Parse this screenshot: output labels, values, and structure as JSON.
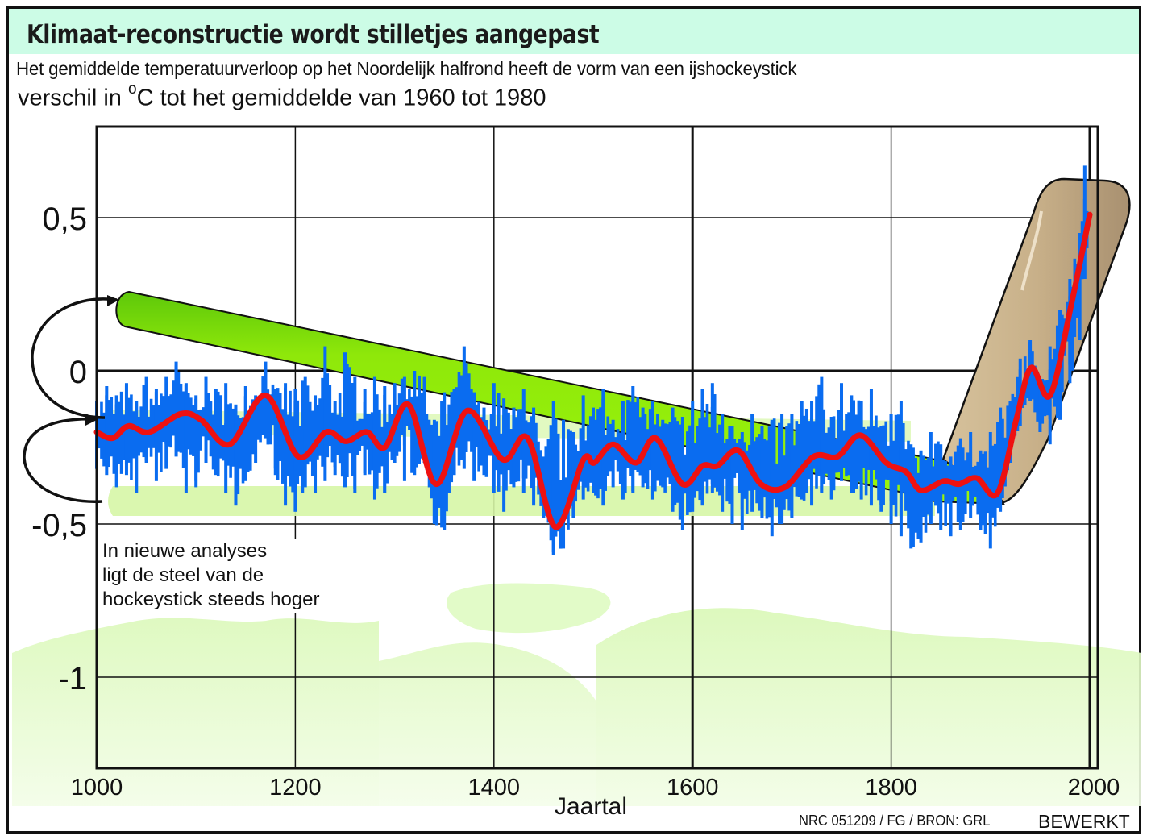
{
  "header": {
    "title": "Klimaat-reconstructie wordt stilletjes aangepast",
    "subtitle": "Het gemiddelde temperatuurverloop op het Noordelijk halfrond heeft de vorm van een ijshockeystick",
    "unit_prefix": "verschil in ",
    "unit_degree": "o",
    "unit_suffix": "C tot het gemiddelde van 1960 tot 1980"
  },
  "annotation": {
    "lines": [
      "In nieuwe analyses",
      "ligt de steel van de",
      "hockeystick steeds hoger"
    ]
  },
  "footer": {
    "credit": "NRC 051209 / FG / BRON: GRL",
    "edited": "BEWERKT"
  },
  "colors": {
    "title_bar": "#ccfce6",
    "raw_series": "#0a6cf0",
    "smoothed_series": "#ee1111",
    "old_stick_shaft": "#99f00a",
    "new_stick_shaft_shadow": "#d4f7a4",
    "stick_blade": "#c9b18a",
    "map_background": "#e2fbc8"
  },
  "chart_data": {
    "type": "line",
    "title": "Klimaat-reconstructie wordt stilletjes aangepast",
    "subtitle": "Het gemiddelde temperatuurverloop op het Noordelijk halfrond heeft de vorm van een ijshockeystick",
    "xlabel": "Jaartal",
    "ylabel": "verschil in °C tot het gemiddelde van 1960 tot 1980",
    "xlim": [
      1000,
      2004
    ],
    "ylim": [
      -1.3,
      0.8
    ],
    "grid": true,
    "x_ticks": [
      1000,
      1200,
      1400,
      1600,
      1800,
      2000
    ],
    "x_tick_labels": [
      "1000",
      "1200",
      "1400",
      "1600",
      "1800",
      "2000"
    ],
    "y_ticks": [
      0.5,
      0,
      -0.5,
      -1
    ],
    "y_tick_labels": [
      "0,5",
      "0",
      "-0,5",
      "-1"
    ],
    "series": [
      {
        "name": "smoothed reconstruction",
        "style": "thick red line",
        "x": [
          1000,
          1016,
          1032,
          1053,
          1085,
          1105,
          1134,
          1170,
          1203,
          1231,
          1251,
          1272,
          1290,
          1314,
          1342,
          1373,
          1409,
          1434,
          1462,
          1490,
          1501,
          1520,
          1543,
          1563,
          1590,
          1610,
          1625,
          1646,
          1669,
          1693,
          1722,
          1746,
          1769,
          1795,
          1815,
          1830,
          1853,
          1868,
          1886,
          1907,
          1926,
          1941,
          1960,
          1981,
          2000
        ],
        "y": [
          -0.2,
          -0.22,
          -0.18,
          -0.2,
          -0.14,
          -0.16,
          -0.24,
          -0.08,
          -0.28,
          -0.2,
          -0.23,
          -0.2,
          -0.25,
          -0.11,
          -0.37,
          -0.13,
          -0.29,
          -0.22,
          -0.51,
          -0.29,
          -0.3,
          -0.24,
          -0.3,
          -0.22,
          -0.37,
          -0.31,
          -0.31,
          -0.26,
          -0.37,
          -0.38,
          -0.28,
          -0.28,
          -0.21,
          -0.3,
          -0.33,
          -0.39,
          -0.36,
          -0.37,
          -0.35,
          -0.4,
          -0.16,
          0.01,
          -0.08,
          0.21,
          0.51
        ]
      },
      {
        "name": "annual reconstruction",
        "style": "blue spiky bars around smoothed line",
        "x": [
          1000,
          1010,
          1020,
          1030,
          1040,
          1050,
          1060,
          1070,
          1080,
          1090,
          1100,
          1110,
          1120,
          1130,
          1140,
          1150,
          1160,
          1170,
          1180,
          1190,
          1200,
          1210,
          1220,
          1230,
          1240,
          1250,
          1260,
          1270,
          1280,
          1290,
          1300,
          1310,
          1320,
          1330,
          1340,
          1350,
          1360,
          1370,
          1380,
          1390,
          1400,
          1410,
          1420,
          1430,
          1440,
          1450,
          1460,
          1470,
          1480,
          1490,
          1500,
          1510,
          1520,
          1530,
          1540,
          1550,
          1560,
          1570,
          1580,
          1590,
          1600,
          1610,
          1620,
          1630,
          1640,
          1650,
          1660,
          1670,
          1680,
          1690,
          1700,
          1710,
          1720,
          1730,
          1740,
          1750,
          1760,
          1770,
          1780,
          1790,
          1800,
          1810,
          1820,
          1830,
          1840,
          1850,
          1860,
          1870,
          1880,
          1890,
          1900,
          1910,
          1920,
          1930,
          1940,
          1950,
          1960,
          1970,
          1980,
          1990,
          1995
        ],
        "y_high": [
          -0.1,
          -0.05,
          -0.08,
          -0.04,
          -0.1,
          -0.02,
          -0.06,
          -0.02,
          0.03,
          -0.04,
          -0.08,
          -0.02,
          -0.06,
          -0.04,
          -0.11,
          -0.05,
          -0.08,
          0.03,
          -0.06,
          -0.04,
          -0.06,
          -0.02,
          -0.08,
          0.08,
          -0.1,
          0.06,
          -0.02,
          -0.06,
          -0.02,
          -0.05,
          -0.04,
          -0.02,
          0.0,
          -0.02,
          -0.16,
          -0.07,
          -0.06,
          0.08,
          -0.07,
          -0.12,
          -0.04,
          -0.09,
          -0.12,
          -0.06,
          -0.12,
          -0.28,
          -0.1,
          -0.16,
          -0.2,
          -0.08,
          -0.12,
          -0.06,
          -0.16,
          -0.1,
          -0.05,
          -0.12,
          -0.1,
          -0.16,
          -0.12,
          -0.15,
          -0.1,
          -0.06,
          -0.04,
          -0.14,
          -0.18,
          -0.2,
          -0.14,
          -0.18,
          -0.16,
          -0.14,
          -0.14,
          -0.1,
          -0.1,
          -0.02,
          -0.15,
          -0.04,
          -0.08,
          -0.1,
          -0.06,
          -0.18,
          -0.14,
          -0.1,
          -0.24,
          -0.26,
          -0.2,
          -0.24,
          -0.28,
          -0.22,
          -0.2,
          -0.26,
          -0.2,
          -0.12,
          -0.1,
          0.04,
          0.1,
          -0.04,
          0.08,
          0.2,
          0.3,
          0.45,
          0.67
        ],
        "y_low": [
          -0.32,
          -0.34,
          -0.38,
          -0.34,
          -0.4,
          -0.3,
          -0.36,
          -0.32,
          -0.28,
          -0.4,
          -0.38,
          -0.3,
          -0.34,
          -0.4,
          -0.44,
          -0.36,
          -0.3,
          -0.22,
          -0.34,
          -0.44,
          -0.46,
          -0.38,
          -0.4,
          -0.36,
          -0.34,
          -0.38,
          -0.4,
          -0.34,
          -0.42,
          -0.4,
          -0.3,
          -0.36,
          -0.34,
          -0.3,
          -0.5,
          -0.52,
          -0.34,
          -0.32,
          -0.36,
          -0.34,
          -0.4,
          -0.46,
          -0.38,
          -0.4,
          -0.44,
          -0.48,
          -0.6,
          -0.58,
          -0.48,
          -0.42,
          -0.4,
          -0.44,
          -0.38,
          -0.42,
          -0.4,
          -0.38,
          -0.42,
          -0.38,
          -0.46,
          -0.52,
          -0.46,
          -0.44,
          -0.4,
          -0.46,
          -0.5,
          -0.52,
          -0.46,
          -0.48,
          -0.54,
          -0.5,
          -0.48,
          -0.42,
          -0.44,
          -0.4,
          -0.42,
          -0.36,
          -0.4,
          -0.42,
          -0.44,
          -0.46,
          -0.5,
          -0.54,
          -0.58,
          -0.56,
          -0.5,
          -0.52,
          -0.54,
          -0.52,
          -0.48,
          -0.52,
          -0.58,
          -0.46,
          -0.3,
          -0.18,
          -0.1,
          -0.2,
          -0.24,
          -0.16,
          -0.04,
          0.1,
          0.3
        ]
      }
    ],
    "annotations": [
      {
        "type": "old hockey stick shaft (green)",
        "from": [
          1015,
          0.2
        ],
        "to": [
          1860,
          -0.28
        ]
      },
      {
        "type": "new hockey stick shaft (faded green, lower)",
        "from": [
          1010,
          -0.42
        ],
        "to": [
          1910,
          -0.42
        ]
      },
      {
        "type": "hockey stick blade (tan)",
        "from": [
          1910,
          -0.35
        ],
        "to": [
          2010,
          0.55
        ]
      },
      {
        "type": "curved arrows",
        "description": "arrows indicating shaft moving from higher to lower position"
      },
      {
        "type": "text",
        "text": "In nieuwe analyses ligt de steel van de hockeystick steeds hoger"
      }
    ],
    "background": "faint green world map",
    "legend": "none"
  }
}
